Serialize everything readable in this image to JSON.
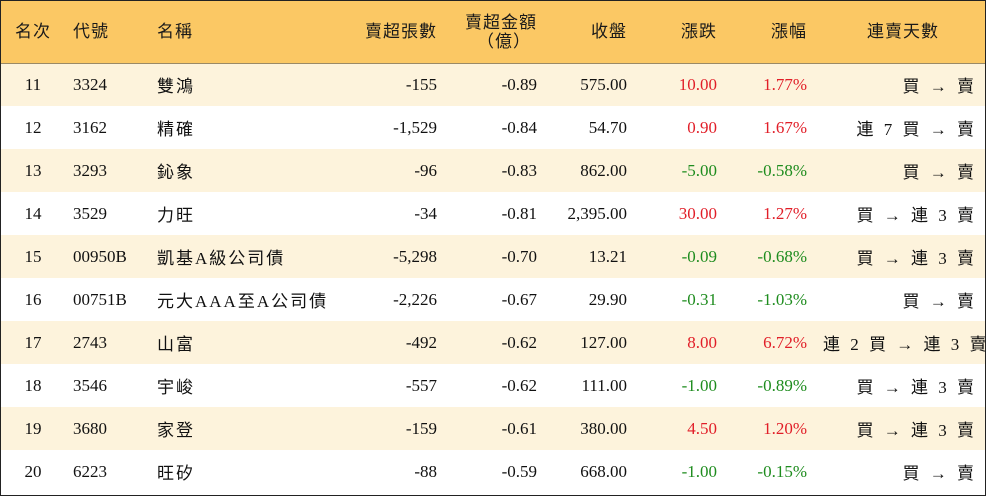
{
  "columns": [
    {
      "key": "rank",
      "label": "名次"
    },
    {
      "key": "code",
      "label": "代號"
    },
    {
      "key": "name",
      "label": "名稱"
    },
    {
      "key": "sell_shares",
      "label": "賣超張數"
    },
    {
      "key": "sell_amount",
      "label_line1": "賣超金額",
      "label_line2": "（億）"
    },
    {
      "key": "close",
      "label": "收盤"
    },
    {
      "key": "change",
      "label": "漲跌"
    },
    {
      "key": "pct",
      "label": "漲幅"
    },
    {
      "key": "streak",
      "label": "連賣天數"
    }
  ],
  "rows": [
    {
      "rank": "11",
      "code": "3324",
      "name": "雙鴻",
      "sell_shares": "-155",
      "sell_amount": "-0.89",
      "close": "575.00",
      "change": "10.00",
      "pct": "1.77%",
      "streak": "買 → 賣",
      "trend": "up"
    },
    {
      "rank": "12",
      "code": "3162",
      "name": "精確",
      "sell_shares": "-1,529",
      "sell_amount": "-0.84",
      "close": "54.70",
      "change": "0.90",
      "pct": "1.67%",
      "streak": "連 7 買 → 賣",
      "trend": "up"
    },
    {
      "rank": "13",
      "code": "3293",
      "name": "鈊象",
      "sell_shares": "-96",
      "sell_amount": "-0.83",
      "close": "862.00",
      "change": "-5.00",
      "pct": "-0.58%",
      "streak": "買 → 賣",
      "trend": "down"
    },
    {
      "rank": "14",
      "code": "3529",
      "name": "力旺",
      "sell_shares": "-34",
      "sell_amount": "-0.81",
      "close": "2,395.00",
      "change": "30.00",
      "pct": "1.27%",
      "streak": "買 → 連 3 賣",
      "trend": "up"
    },
    {
      "rank": "15",
      "code": "00950B",
      "name": "凱基A級公司債",
      "sell_shares": "-5,298",
      "sell_amount": "-0.70",
      "close": "13.21",
      "change": "-0.09",
      "pct": "-0.68%",
      "streak": "買 → 連 3 賣",
      "trend": "down"
    },
    {
      "rank": "16",
      "code": "00751B",
      "name": "元大AAA至A公司債",
      "sell_shares": "-2,226",
      "sell_amount": "-0.67",
      "close": "29.90",
      "change": "-0.31",
      "pct": "-1.03%",
      "streak": "買 → 賣",
      "trend": "down"
    },
    {
      "rank": "17",
      "code": "2743",
      "name": "山富",
      "sell_shares": "-492",
      "sell_amount": "-0.62",
      "close": "127.00",
      "change": "8.00",
      "pct": "6.72%",
      "streak": "連 2 買 → 連 3 賣",
      "trend": "up"
    },
    {
      "rank": "18",
      "code": "3546",
      "name": "宇峻",
      "sell_shares": "-557",
      "sell_amount": "-0.62",
      "close": "111.00",
      "change": "-1.00",
      "pct": "-0.89%",
      "streak": "買 → 連 3 賣",
      "trend": "down"
    },
    {
      "rank": "19",
      "code": "3680",
      "name": "家登",
      "sell_shares": "-159",
      "sell_amount": "-0.61",
      "close": "380.00",
      "change": "4.50",
      "pct": "1.20%",
      "streak": "買 → 連 3 賣",
      "trend": "up"
    },
    {
      "rank": "20",
      "code": "6223",
      "name": "旺矽",
      "sell_shares": "-88",
      "sell_amount": "-0.59",
      "close": "668.00",
      "change": "-1.00",
      "pct": "-0.15%",
      "streak": "買 → 賣",
      "trend": "down"
    }
  ],
  "colors": {
    "header_bg": "#fbc864",
    "odd_row_bg": "#fdf3dc",
    "even_row_bg": "#ffffff",
    "up": "#e11e28",
    "down": "#1e8c1e",
    "border": "#222222"
  }
}
